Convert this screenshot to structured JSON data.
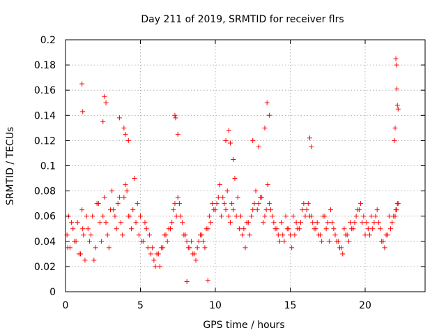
{
  "chart_data": {
    "type": "scatter",
    "title": "Day 211 of 2019, SRMTID for receiver flrs",
    "xlabel": "GPS time / hours",
    "ylabel": "SRMTID / TECUs",
    "xlim": [
      0,
      24
    ],
    "ylim": [
      0,
      0.2
    ],
    "xticks": [
      0,
      5,
      10,
      15,
      20
    ],
    "xtick_labels": [
      "0",
      "5",
      "10",
      "15",
      "20"
    ],
    "yticks": [
      0,
      0.02,
      0.04,
      0.06,
      0.08,
      0.1,
      0.12,
      0.14,
      0.16,
      0.18,
      0.2
    ],
    "ytick_labels": [
      "0",
      "0.02",
      "0.04",
      "0.06",
      "0.08",
      "0.1",
      "0.12",
      "0.14",
      "0.16",
      "0.18",
      "0.2"
    ],
    "grid": true,
    "marker": "plus",
    "color": "#ff0000",
    "series": [
      {
        "x": [
          0.1,
          0.2,
          0.3,
          0.5,
          0.6,
          0.8,
          1.0,
          1.1,
          1.2,
          1.3,
          1.5,
          1.6,
          1.8,
          2.0,
          2.1,
          2.3,
          2.5,
          2.6,
          2.8,
          3.0,
          3.1,
          3.3,
          3.5,
          3.7,
          3.9,
          4.0,
          4.2,
          4.4,
          4.5,
          4.7,
          4.9,
          5.0,
          5.2,
          5.4,
          5.5,
          5.7,
          5.9,
          6.0,
          6.2,
          6.4,
          6.6,
          6.8,
          7.0,
          7.2,
          7.4,
          7.6,
          7.8,
          8.0,
          8.2,
          8.4,
          8.6,
          8.8,
          9.0,
          9.2,
          9.4,
          9.6,
          9.8,
          10.0,
          10.2,
          10.4,
          10.6,
          10.8,
          11.0,
          11.2,
          11.4,
          11.6,
          11.8,
          12.0,
          12.2,
          12.4,
          12.6,
          12.8,
          13.0,
          13.2,
          13.4,
          13.6,
          13.8,
          14.0,
          14.2,
          14.4,
          14.6,
          14.8,
          15.0,
          15.2,
          15.4,
          15.6,
          15.8,
          16.0,
          16.2,
          16.4,
          16.6,
          16.8,
          17.0,
          17.2,
          17.4,
          17.6,
          17.8,
          18.0,
          18.2,
          18.4,
          18.6,
          18.8,
          19.0,
          19.2,
          19.4,
          19.6,
          19.8,
          20.0,
          20.2,
          20.4,
          20.6,
          20.8,
          21.0,
          21.2,
          21.4,
          21.6,
          21.8,
          22.0,
          22.1,
          22.2,
          0.15,
          0.4,
          0.7,
          0.9,
          1.15,
          1.4,
          1.7,
          1.9,
          2.2,
          2.4,
          2.7,
          2.9,
          3.2,
          3.4,
          3.6,
          3.8,
          4.1,
          4.3,
          4.6,
          4.8,
          5.1,
          5.3,
          5.6,
          5.8,
          6.1,
          6.3,
          6.5,
          6.7,
          6.9,
          7.1,
          7.3,
          7.5,
          7.7,
          7.9,
          8.1,
          8.3,
          8.5,
          8.7,
          8.9,
          9.1,
          9.3,
          9.5,
          9.7,
          9.9,
          10.1,
          10.3,
          10.5,
          10.7,
          10.9,
          11.1,
          11.3,
          11.5,
          11.7,
          11.9,
          12.1,
          12.3,
          12.5,
          12.7,
          12.9,
          13.1,
          13.3,
          13.5,
          13.7,
          13.9,
          14.1,
          14.3,
          14.5,
          14.7,
          14.9,
          15.1,
          15.3,
          15.5,
          15.7,
          15.9,
          16.1,
          16.3,
          16.5,
          16.7,
          16.9,
          17.1,
          17.3,
          17.5,
          17.7,
          17.9,
          18.1,
          18.3,
          18.5,
          18.7,
          18.9,
          19.1,
          19.3,
          19.5,
          19.7,
          19.9,
          20.1,
          20.3,
          20.5,
          20.7,
          20.9,
          21.1,
          21.3,
          21.5,
          21.7,
          21.9,
          22.05,
          22.15,
          1.1,
          1.15,
          2.6,
          2.7,
          2.5,
          3.6,
          3.9,
          4.0,
          4.2,
          7.3,
          7.35,
          7.5,
          10.7,
          10.9,
          11.0,
          13.3,
          13.45,
          13.6,
          16.3,
          16.4,
          22.05,
          22.1,
          22.12,
          22.15,
          22.2,
          22.0,
          21.95,
          12.5,
          12.9,
          11.2,
          9.5,
          8.1
        ],
        "y": [
          0.045,
          0.06,
          0.035,
          0.05,
          0.04,
          0.055,
          0.03,
          0.065,
          0.045,
          0.025,
          0.05,
          0.04,
          0.06,
          0.035,
          0.07,
          0.055,
          0.06,
          0.075,
          0.045,
          0.065,
          0.08,
          0.06,
          0.07,
          0.055,
          0.075,
          0.085,
          0.06,
          0.05,
          0.065,
          0.055,
          0.045,
          0.06,
          0.04,
          0.05,
          0.035,
          0.03,
          0.025,
          0.02,
          0.03,
          0.035,
          0.045,
          0.04,
          0.05,
          0.065,
          0.06,
          0.07,
          0.055,
          0.045,
          0.035,
          0.04,
          0.03,
          0.035,
          0.045,
          0.04,
          0.05,
          0.06,
          0.07,
          0.065,
          0.075,
          0.06,
          0.07,
          0.08,
          0.055,
          0.065,
          0.06,
          0.05,
          0.045,
          0.035,
          0.055,
          0.06,
          0.07,
          0.065,
          0.075,
          0.055,
          0.065,
          0.07,
          0.06,
          0.05,
          0.045,
          0.055,
          0.04,
          0.05,
          0.045,
          0.06,
          0.055,
          0.05,
          0.065,
          0.06,
          0.07,
          0.06,
          0.05,
          0.055,
          0.045,
          0.06,
          0.05,
          0.04,
          0.055,
          0.045,
          0.04,
          0.035,
          0.05,
          0.045,
          0.055,
          0.05,
          0.06,
          0.065,
          0.055,
          0.045,
          0.05,
          0.06,
          0.055,
          0.065,
          0.05,
          0.04,
          0.045,
          0.06,
          0.055,
          0.06,
          0.065,
          0.07,
          0.035,
          0.055,
          0.04,
          0.03,
          0.05,
          0.06,
          0.045,
          0.025,
          0.07,
          0.04,
          0.055,
          0.035,
          0.065,
          0.05,
          0.075,
          0.045,
          0.08,
          0.06,
          0.09,
          0.07,
          0.04,
          0.055,
          0.045,
          0.035,
          0.03,
          0.02,
          0.035,
          0.045,
          0.05,
          0.055,
          0.07,
          0.075,
          0.06,
          0.045,
          0.04,
          0.035,
          0.03,
          0.025,
          0.04,
          0.045,
          0.035,
          0.05,
          0.055,
          0.065,
          0.07,
          0.085,
          0.075,
          0.065,
          0.06,
          0.07,
          0.09,
          0.075,
          0.06,
          0.05,
          0.055,
          0.045,
          0.065,
          0.08,
          0.07,
          0.075,
          0.06,
          0.085,
          0.065,
          0.055,
          0.05,
          0.04,
          0.045,
          0.06,
          0.05,
          0.035,
          0.045,
          0.05,
          0.055,
          0.07,
          0.065,
          0.06,
          0.055,
          0.05,
          0.045,
          0.04,
          0.06,
          0.055,
          0.065,
          0.05,
          0.04,
          0.035,
          0.03,
          0.045,
          0.04,
          0.05,
          0.055,
          0.065,
          0.07,
          0.06,
          0.055,
          0.045,
          0.05,
          0.06,
          0.055,
          0.04,
          0.035,
          0.045,
          0.05,
          0.06,
          0.065,
          0.07,
          0.165,
          0.143,
          0.155,
          0.15,
          0.135,
          0.138,
          0.13,
          0.125,
          0.12,
          0.14,
          0.138,
          0.125,
          0.12,
          0.128,
          0.118,
          0.13,
          0.15,
          0.14,
          0.122,
          0.115,
          0.185,
          0.18,
          0.161,
          0.148,
          0.145,
          0.13,
          0.12,
          0.12,
          0.115,
          0.105,
          0.009,
          0.008
        ]
      }
    ]
  }
}
